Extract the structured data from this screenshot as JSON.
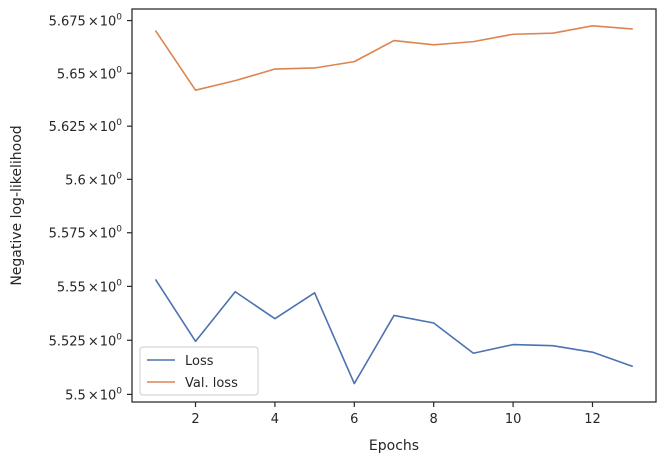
{
  "chart_data": {
    "type": "line",
    "title": "",
    "xlabel": "Epochs",
    "ylabel": "Negative log-likelihood",
    "x": [
      1,
      2,
      3,
      4,
      5,
      6,
      7,
      8,
      9,
      10,
      11,
      12,
      13
    ],
    "xlim": [
      0.4,
      13.6
    ],
    "ylim": [
      5.4965,
      5.6805
    ],
    "yscale": "log",
    "grid": false,
    "legend_position": "lower-left",
    "x_ticks": [
      {
        "value": 2,
        "label": "2"
      },
      {
        "value": 4,
        "label": "4"
      },
      {
        "value": 6,
        "label": "6"
      },
      {
        "value": 8,
        "label": "8"
      },
      {
        "value": 10,
        "label": "10"
      },
      {
        "value": 12,
        "label": "12"
      }
    ],
    "y_ticks": [
      {
        "value": 5.5,
        "mantissa": "5.5",
        "base": "10",
        "exp": "0"
      },
      {
        "value": 5.525,
        "mantissa": "5.525",
        "base": "10",
        "exp": "0"
      },
      {
        "value": 5.55,
        "mantissa": "5.55",
        "base": "10",
        "exp": "0"
      },
      {
        "value": 5.575,
        "mantissa": "5.575",
        "base": "10",
        "exp": "0"
      },
      {
        "value": 5.6,
        "mantissa": "5.6",
        "base": "10",
        "exp": "0"
      },
      {
        "value": 5.625,
        "mantissa": "5.625",
        "base": "10",
        "exp": "0"
      },
      {
        "value": 5.65,
        "mantissa": "5.65",
        "base": "10",
        "exp": "0"
      },
      {
        "value": 5.675,
        "mantissa": "5.675",
        "base": "10",
        "exp": "0"
      }
    ],
    "series": [
      {
        "name": "Loss",
        "color": "#4c72b0",
        "values": [
          5.553,
          5.5245,
          5.5475,
          5.535,
          5.547,
          5.505,
          5.5365,
          5.533,
          5.519,
          5.523,
          5.5225,
          5.5195,
          5.513
        ]
      },
      {
        "name": "Val. loss",
        "color": "#dd8452",
        "values": [
          5.67,
          5.642,
          5.6465,
          5.652,
          5.6525,
          5.6555,
          5.6655,
          5.6635,
          5.665,
          5.6685,
          5.669,
          5.6725,
          5.671
        ]
      }
    ]
  }
}
